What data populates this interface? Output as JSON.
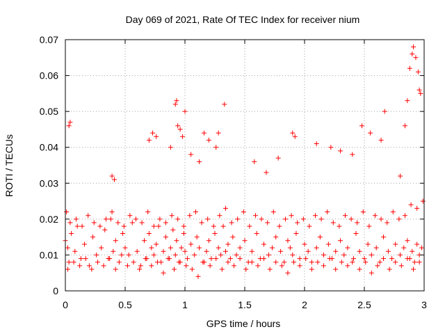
{
  "chart_data": {
    "type": "scatter",
    "title": "Day 069 of 2021, Rate Of TEC Index for receiver nium",
    "xlabel": "GPS time / hours",
    "ylabel": "ROTI / TECUs",
    "xlim": [
      0,
      3
    ],
    "ylim": [
      0,
      0.07
    ],
    "xticks": [
      "0",
      "0.5",
      "1",
      "1.5",
      "2",
      "2.5",
      "3"
    ],
    "yticks": [
      "0",
      "0.01",
      "0.02",
      "0.03",
      "0.04",
      "0.05",
      "0.06",
      "0.07"
    ],
    "grid": true,
    "legend": "none",
    "marker": "+",
    "color": "#ff0000",
    "x": [
      0.0,
      0.01,
      0.02,
      0.03,
      0.05,
      0.08,
      0.1,
      0.13,
      0.16,
      0.2,
      0.23,
      0.26,
      0.3,
      0.33,
      0.36,
      0.38,
      0.4,
      0.42,
      0.45,
      0.48,
      0.5,
      0.53,
      0.56,
      0.6,
      0.63,
      0.66,
      0.68,
      0.7,
      0.72,
      0.74,
      0.76,
      0.78,
      0.8,
      0.82,
      0.84,
      0.86,
      0.88,
      0.9,
      0.92,
      0.93,
      0.95,
      0.97,
      0.99,
      1.0,
      1.02,
      1.05,
      1.08,
      1.1,
      1.12,
      1.15,
      1.18,
      1.2,
      1.22,
      1.25,
      1.28,
      1.3,
      1.32,
      1.34,
      1.36,
      1.38,
      1.4,
      1.43,
      1.46,
      1.5,
      1.53,
      1.56,
      1.6,
      1.63,
      1.66,
      1.7,
      1.73,
      1.76,
      1.8,
      1.83,
      1.86,
      1.88,
      1.9,
      1.93,
      1.96,
      2.0,
      2.03,
      2.06,
      2.1,
      2.13,
      2.16,
      2.2,
      2.23,
      2.26,
      2.3,
      2.33,
      2.36,
      2.4,
      2.43,
      2.46,
      2.5,
      2.53,
      2.56,
      2.6,
      2.63,
      2.66,
      2.7,
      2.73,
      2.76,
      2.8,
      2.83,
      2.86,
      2.88,
      2.9,
      2.92,
      2.94,
      2.96,
      2.98,
      0.02,
      0.07,
      0.12,
      0.17,
      0.22,
      0.27,
      0.32,
      0.37,
      0.42,
      0.47,
      0.52,
      0.57,
      0.62,
      0.67,
      0.72,
      0.77,
      0.82,
      0.87,
      0.91,
      0.96,
      1.01,
      1.06,
      1.11,
      1.16,
      1.21,
      1.26,
      1.31,
      1.36,
      1.41,
      1.46,
      1.51,
      1.56,
      1.61,
      1.66,
      1.71,
      1.76,
      1.81,
      1.86,
      1.91,
      1.96,
      2.01,
      2.06,
      2.11,
      2.16,
      2.21,
      2.26,
      2.31,
      2.36,
      2.41,
      2.46,
      2.51,
      2.56,
      2.61,
      2.66,
      2.71,
      2.76,
      2.81,
      2.86,
      2.91,
      2.96,
      0.04,
      0.09,
      0.14,
      0.19,
      0.24,
      0.29,
      0.34,
      0.39,
      0.44,
      0.49,
      0.54,
      0.59,
      0.64,
      0.69,
      0.74,
      0.79,
      0.84,
      0.89,
      0.94,
      0.99,
      1.04,
      1.09,
      1.14,
      1.19,
      1.24,
      1.29,
      1.34,
      1.39,
      1.44,
      1.49,
      1.54,
      1.59,
      1.64,
      1.69,
      1.74,
      1.79,
      1.84,
      1.89,
      1.94,
      1.99,
      2.04,
      2.09,
      2.14,
      2.19,
      2.24,
      2.29,
      2.34,
      2.39,
      2.44,
      2.49,
      2.54,
      2.59,
      2.64,
      2.69,
      2.74,
      2.79,
      2.84,
      2.89,
      2.94,
      2.99,
      0.03,
      0.04,
      0.39,
      0.41,
      0.7,
      0.73,
      0.76,
      0.88,
      0.92,
      0.93,
      0.94,
      0.96,
      0.98,
      1.0,
      1.05,
      1.12,
      1.16,
      1.2,
      1.26,
      1.28,
      1.33,
      1.58,
      1.68,
      1.78,
      1.9,
      1.92,
      2.1,
      2.22,
      2.3,
      2.4,
      2.48,
      2.55,
      2.64,
      2.67,
      2.8,
      2.84,
      2.86,
      2.88,
      2.9,
      2.91,
      2.93,
      2.95,
      2.96,
      2.97
    ],
    "y": [
      0.014,
      0.022,
      0.012,
      0.008,
      0.016,
      0.011,
      0.018,
      0.009,
      0.013,
      0.007,
      0.015,
      0.01,
      0.012,
      0.017,
      0.009,
      0.02,
      0.011,
      0.014,
      0.008,
      0.016,
      0.012,
      0.01,
      0.019,
      0.011,
      0.007,
      0.014,
      0.009,
      0.016,
      0.012,
      0.01,
      0.013,
      0.018,
      0.008,
      0.011,
      0.015,
      0.009,
      0.012,
      0.017,
      0.01,
      0.014,
      0.008,
      0.012,
      0.016,
      0.011,
      0.009,
      0.013,
      0.01,
      0.015,
      0.012,
      0.008,
      0.011,
      0.014,
      0.009,
      0.016,
      0.012,
      0.01,
      0.018,
      0.011,
      0.013,
      0.009,
      0.015,
      0.01,
      0.012,
      0.014,
      0.008,
      0.011,
      0.016,
      0.009,
      0.013,
      0.01,
      0.012,
      0.015,
      0.011,
      0.008,
      0.014,
      0.012,
      0.01,
      0.016,
      0.009,
      0.013,
      0.011,
      0.008,
      0.012,
      0.015,
      0.01,
      0.013,
      0.009,
      0.011,
      0.014,
      0.01,
      0.012,
      0.008,
      0.016,
      0.011,
      0.009,
      0.013,
      0.01,
      0.012,
      0.008,
      0.015,
      0.011,
      0.009,
      0.013,
      0.01,
      0.012,
      0.014,
      0.009,
      0.011,
      0.008,
      0.013,
      0.01,
      0.012,
      0.006,
      0.008,
      0.007,
      0.009,
      0.006,
      0.008,
      0.007,
      0.009,
      0.006,
      0.01,
      0.007,
      0.008,
      0.006,
      0.009,
      0.007,
      0.008,
      0.005,
      0.009,
      0.006,
      0.008,
      0.007,
      0.006,
      0.004,
      0.008,
      0.007,
      0.009,
      0.006,
      0.008,
      0.007,
      0.009,
      0.006,
      0.008,
      0.007,
      0.009,
      0.006,
      0.008,
      0.007,
      0.005,
      0.008,
      0.007,
      0.009,
      0.006,
      0.008,
      0.007,
      0.009,
      0.006,
      0.008,
      0.007,
      0.009,
      0.006,
      0.008,
      0.005,
      0.007,
      0.009,
      0.006,
      0.008,
      0.007,
      0.009,
      0.006,
      0.008,
      0.019,
      0.02,
      0.018,
      0.021,
      0.019,
      0.018,
      0.02,
      0.022,
      0.019,
      0.018,
      0.021,
      0.02,
      0.019,
      0.022,
      0.018,
      0.02,
      0.019,
      0.021,
      0.02,
      0.018,
      0.021,
      0.022,
      0.019,
      0.02,
      0.018,
      0.021,
      0.023,
      0.019,
      0.02,
      0.022,
      0.018,
      0.021,
      0.02,
      0.019,
      0.022,
      0.018,
      0.02,
      0.021,
      0.019,
      0.02,
      0.018,
      0.021,
      0.02,
      0.022,
      0.019,
      0.018,
      0.021,
      0.02,
      0.019,
      0.022,
      0.018,
      0.021,
      0.02,
      0.019,
      0.022,
      0.02,
      0.021,
      0.024,
      0.023,
      0.025,
      0.046,
      0.047,
      0.032,
      0.031,
      0.042,
      0.044,
      0.043,
      0.04,
      0.052,
      0.053,
      0.046,
      0.045,
      0.043,
      0.05,
      0.038,
      0.036,
      0.044,
      0.042,
      0.04,
      0.044,
      0.052,
      0.036,
      0.033,
      0.037,
      0.044,
      0.043,
      0.041,
      0.04,
      0.039,
      0.038,
      0.046,
      0.044,
      0.042,
      0.05,
      0.032,
      0.046,
      0.053,
      0.062,
      0.066,
      0.068,
      0.065,
      0.061,
      0.056,
      0.055
    ]
  }
}
